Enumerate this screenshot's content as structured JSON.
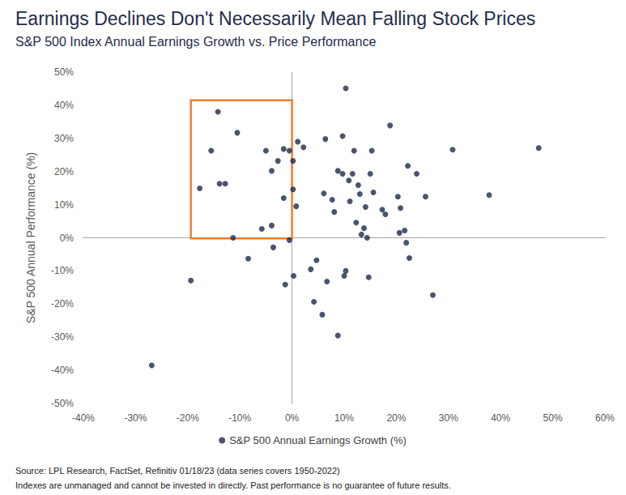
{
  "chart_data": {
    "type": "scatter",
    "title": "Earnings Declines Don't Necessarily Mean Falling Stock Prices",
    "subtitle": "S&P 500 Index Annual Earnings Growth vs. Price Performance",
    "y_label": "S&P 500 Annual Performance (%)",
    "footnotes": [
      "Source: LPL Research, FactSet, Refinitiv 01/18/23 (data series covers 1950-2022)",
      "Indexes are unmanaged and cannot be invested in directly. Past performance is no guarantee of future results."
    ],
    "grid": false,
    "legend": "bottom",
    "marker": "circle",
    "series": [
      {
        "name": "S&P 500 Annual Earnings Growth (%)",
        "color": "#1b2a47",
        "x": [
          -26.9,
          -19.4,
          -17.7,
          -15.5,
          -14.2,
          -13.9,
          -12.8,
          -11.3,
          -10.5,
          -8.4,
          -5.8,
          -5.0,
          -3.9,
          -3.9,
          -3.6,
          -2.7,
          -1.6,
          -1.6,
          -1.3,
          -0.5,
          -0.5,
          0.2,
          0.2,
          0.3,
          0.8,
          1.1,
          2.2,
          3.6,
          4.2,
          4.7,
          5.8,
          6.1,
          6.4,
          6.7,
          7.7,
          8.1,
          8.8,
          8.8,
          9.7,
          9.7,
          10.0,
          10.3,
          10.3,
          10.9,
          11.1,
          11.6,
          11.9,
          12.3,
          12.7,
          13.0,
          13.3,
          13.8,
          14.1,
          14.4,
          14.7,
          15.0,
          15.3,
          15.6,
          17.3,
          17.9,
          18.8,
          20.3,
          20.6,
          20.8,
          21.6,
          21.9,
          22.2,
          22.5,
          23.9,
          25.6,
          27.0,
          30.8,
          37.8,
          47.3
        ],
        "values": [
          -38.5,
          -12.9,
          14.9,
          26.3,
          38.0,
          16.3,
          16.3,
          0.0,
          31.7,
          -6.3,
          2.7,
          26.3,
          20.2,
          3.7,
          -2.9,
          23.2,
          26.8,
          12.0,
          -14.1,
          -0.7,
          26.3,
          23.2,
          14.6,
          -11.5,
          9.5,
          29.0,
          27.3,
          -9.5,
          -19.3,
          -6.8,
          -23.2,
          13.4,
          29.8,
          -13.2,
          11.5,
          7.8,
          20.2,
          -29.5,
          19.3,
          30.7,
          -11.5,
          -10.0,
          45.1,
          17.3,
          11.0,
          19.3,
          26.3,
          4.6,
          15.9,
          13.2,
          1.0,
          2.9,
          9.3,
          0.0,
          -11.9,
          19.3,
          26.3,
          13.7,
          8.5,
          7.1,
          33.9,
          12.4,
          1.5,
          9.0,
          2.2,
          -1.5,
          21.7,
          -6.1,
          19.3,
          12.4,
          -17.3,
          26.6,
          12.9,
          27.1
        ]
      }
    ],
    "highlight": {
      "x": [
        -19.4,
        0
      ],
      "y": [
        -0.2,
        41.5
      ],
      "color": "#ef7d31"
    },
    "xlim": [
      -40,
      60
    ],
    "xticks": [
      {
        "value": -40,
        "label": "-40%"
      },
      {
        "value": -30,
        "label": "-30%"
      },
      {
        "value": -20,
        "label": "-20%"
      },
      {
        "value": -10,
        "label": "-10%"
      },
      {
        "value": 0,
        "label": "0%"
      },
      {
        "value": 10,
        "label": "10%"
      },
      {
        "value": 20,
        "label": "20%"
      },
      {
        "value": 30,
        "label": "30%"
      },
      {
        "value": 40,
        "label": "40%"
      },
      {
        "value": 50,
        "label": "50%"
      },
      {
        "value": 60,
        "label": "60%"
      }
    ],
    "ylim": [
      -50,
      50
    ],
    "yticks": [
      {
        "value": -50,
        "label": "-50%"
      },
      {
        "value": -40,
        "label": "-40%"
      },
      {
        "value": -30,
        "label": "-30%"
      },
      {
        "value": -20,
        "label": "-20%"
      },
      {
        "value": -10,
        "label": "-10%"
      },
      {
        "value": 0,
        "label": "0%"
      },
      {
        "value": 10,
        "label": "10%"
      },
      {
        "value": 20,
        "label": "20%"
      },
      {
        "value": 30,
        "label": "30%"
      },
      {
        "value": 40,
        "label": "40%"
      },
      {
        "value": 50,
        "label": "50%"
      }
    ]
  }
}
